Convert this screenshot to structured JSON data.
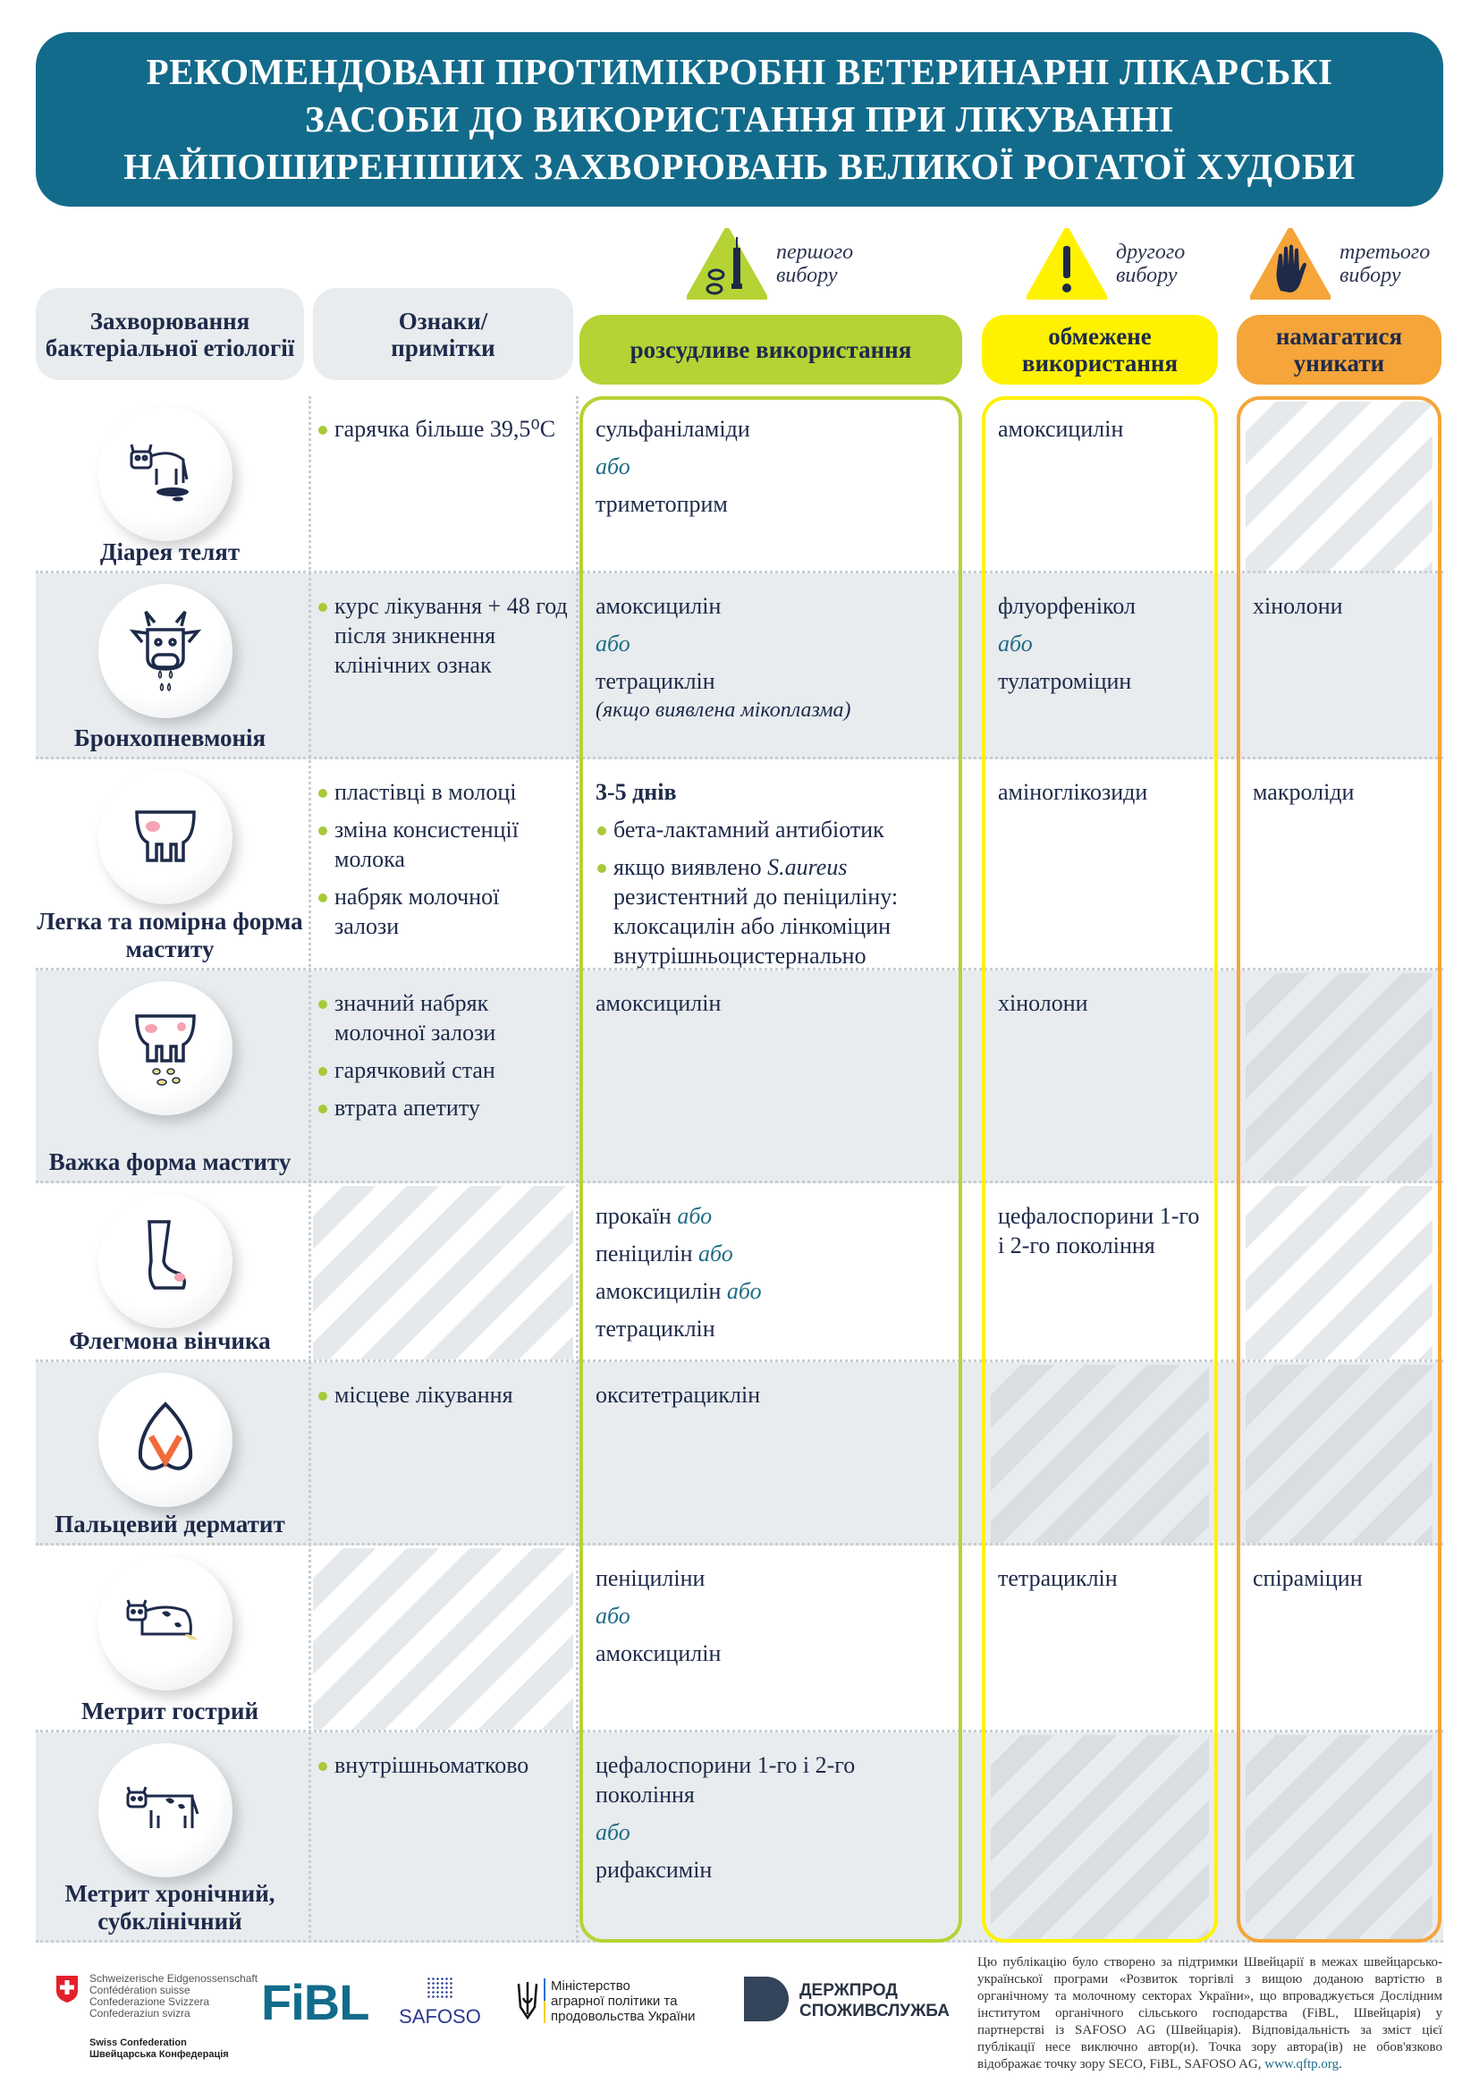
{
  "title": "РЕКОМЕНДОВАНІ ПРОТИМІКРОБНІ ВЕТЕРИНАРНІ ЛІКАРСЬКІ ЗАСОБИ ДО ВИКОРИСТАННЯ ПРИ ЛІКУВАННІ НАЙПОШИРЕНІШИХ ЗАХВОРЮВАНЬ ВЕЛИКОЇ РОГАТОЇ ХУДОБИ",
  "title_lines": [
    "РЕКОМЕНДОВАНІ ПРОТИМІКРОБНІ ВЕТЕРИНАРНІ ЛІКАРСЬКІ",
    "ЗАСОБИ ДО ВИКОРИСТАННЯ ПРИ ЛІКУВАННІ",
    "НАЙПОШИРЕНІШИХ ЗАХВОРЮВАНЬ ВЕЛИКОЇ РОГАТОЇ ХУДОБИ"
  ],
  "headers": {
    "disease": "Захворювання бактеріальної етіології",
    "signs": "Ознаки/ примітки",
    "first": {
      "choice": "першого вибору",
      "label": "розсудливе використання",
      "icon": "syringe-pills-icon",
      "color": "#b5d334"
    },
    "second": {
      "choice": "другого вибору",
      "label": "обмежене використання",
      "icon": "exclamation-warning-icon",
      "color": "#fff200"
    },
    "third": {
      "choice": "третього вибору",
      "label": "намагатися уникати",
      "icon": "stop-hand-icon",
      "color": "#f5a53a"
    }
  },
  "colors": {
    "banner": "#136b8b",
    "text": "#1e2a4a",
    "row_gray": "#e8ecee",
    "or": "#1e6c87"
  },
  "rows": [
    {
      "disease": "Діарея телят",
      "icon": "calf-diarrhea-icon",
      "signs": [
        {
          "kind": "b",
          "text": "гарячка більше 39,5⁰C"
        }
      ],
      "first": [
        {
          "text": "сульфаніламіди"
        },
        {
          "kind": "or",
          "text": "або"
        },
        {
          "text": "триметоприм"
        }
      ],
      "second": [
        {
          "text": "амоксицилін"
        }
      ],
      "third": null
    },
    {
      "disease": "Бронхопневмонія",
      "icon": "cow-head-sneezing-icon",
      "signs": [
        {
          "kind": "b",
          "text": "курс лікування + 48 год після зникнення клінічних ознак"
        }
      ],
      "first": [
        {
          "text": "амоксицилін"
        },
        {
          "kind": "or",
          "text": "або"
        },
        {
          "text": "тетрациклін",
          "note": "(якщо виявлена мікоплазма)"
        }
      ],
      "second": [
        {
          "text": "флуорфенікол"
        },
        {
          "kind": "or",
          "text": "або"
        },
        {
          "text": "тулатроміцин"
        }
      ],
      "third": [
        {
          "text": "хінолони"
        }
      ]
    },
    {
      "disease": "Легка та помірна форма маститу",
      "icon": "udder-icon",
      "signs": [
        {
          "kind": "b",
          "text": "пластівці в молоці"
        },
        {
          "kind": "b",
          "text": "зміна консистенції молока"
        },
        {
          "kind": "b",
          "text": "набряк молочної залози"
        }
      ],
      "first": [
        {
          "kind": "bold",
          "text": "3-5 днів"
        },
        {
          "kind": "b",
          "text": "бета-лактамний  антибіотик"
        },
        {
          "kind": "b",
          "text": "якщо виявлено ",
          "italic": "S.aureus",
          "rest": " резистентний до пеніциліну: клоксацилін або лінкоміцин внутрішньоцистернально"
        }
      ],
      "second": [
        {
          "text": "аміноглікозиди"
        }
      ],
      "third": [
        {
          "text": "макроліди"
        }
      ]
    },
    {
      "disease": "Важка форма маститу",
      "icon": "udder-severe-icon",
      "signs": [
        {
          "kind": "b",
          "text": "значний набряк молочної залози"
        },
        {
          "kind": "b",
          "text": "гарячковий стан"
        },
        {
          "kind": "b",
          "text": "втрата апетиту"
        }
      ],
      "first": [
        {
          "text": "амоксицилін"
        }
      ],
      "second": [
        {
          "text": "хінолони"
        }
      ],
      "third": null
    },
    {
      "disease": "Флегмона вінчика",
      "icon": "cow-leg-icon",
      "signs": null,
      "first": [
        {
          "text": "прокаїн",
          "or": "або"
        },
        {
          "text": "пеніцилін",
          "or": "або"
        },
        {
          "text": "амоксицилін",
          "or": "або"
        },
        {
          "text": "тетрациклін"
        }
      ],
      "second": [
        {
          "text": "цефалоспорини 1-го і 2-го покоління"
        }
      ],
      "third": null
    },
    {
      "disease": "Пальцевий дерматит",
      "icon": "hoof-icon",
      "signs": [
        {
          "kind": "b",
          "text": "місцеве лікування"
        }
      ],
      "first": [
        {
          "text": "окситетрациклін"
        }
      ],
      "second": null,
      "third": null
    },
    {
      "disease": "Метрит гострий",
      "icon": "cow-lying-icon",
      "signs": null,
      "first": [
        {
          "text": "пеніциліни"
        },
        {
          "kind": "or",
          "text": "або"
        },
        {
          "text": "амоксицилін"
        }
      ],
      "second": [
        {
          "text": "тетрациклін"
        }
      ],
      "third": [
        {
          "text": "спіраміцин"
        }
      ]
    },
    {
      "disease": "Метрит хронічний, субклінічний",
      "icon": "cow-standing-icon",
      "signs": [
        {
          "kind": "b",
          "text": "внутрішньоматково"
        }
      ],
      "first": [
        {
          "text": "цефалоспорини 1-го і 2-го покоління"
        },
        {
          "kind": "or",
          "text": "або"
        },
        {
          "text": "рифаксимін"
        }
      ],
      "second": null,
      "third": null
    }
  ],
  "footer": {
    "swiss": [
      "Schweizerische Eidgenossenschaft",
      "Confédération suisse",
      "Confederazione Svizzera",
      "Confederaziun svizra"
    ],
    "swiss_sub": [
      "Swiss Confederation",
      "Швейцарська Конфедерація"
    ],
    "fibl": "FiBL",
    "safoso": "SAFOSO",
    "ministry": [
      "Міністерство",
      "аграрної політики та",
      "продовольства України"
    ],
    "derzh": [
      "ДЕРЖПРОД",
      "СПОЖИВСЛУЖБА"
    ],
    "note": "Цю публікацію було створено за підтримки Швейцарії в межах швейцарсько-української програми «Розвиток торгівлі з вищою доданою вартістю в органічному та молочному секторах України», що впроваджується Дослідним інститутом органічного сільського господарства (FiBL, Швейцарія) у партнерстві із SAFOSO AG (Швейцарія). Відповідальність за зміст цієї публікації несе виключно автор(и). Точка зору автора(ів) не обов'язково відображає точку зору SECO, FiBL, SAFOSO AG, ",
    "link": "www.qftp.org",
    "tail": "."
  }
}
